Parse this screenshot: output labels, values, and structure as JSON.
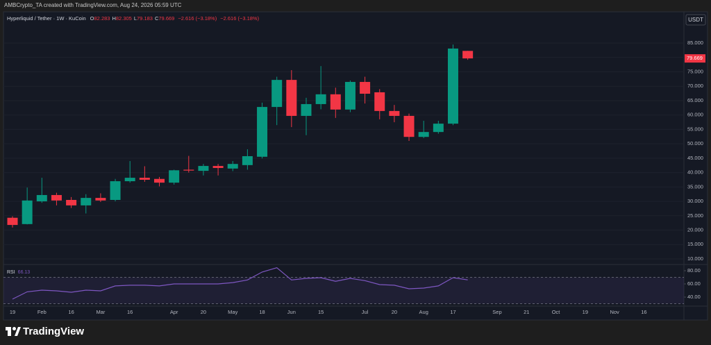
{
  "header": {
    "attribution": "AMBCrypto_TA created with TradingView.com, Aug 24, 2026 05:59 UTC",
    "badge": "USDT",
    "brand": "TradingView"
  },
  "chart_data": [
    {
      "type": "candlestick",
      "title": "Hyperliquid / Tether · 1W · KuCoin",
      "ohlc_letters": [
        "O",
        "H",
        "L",
        "C"
      ],
      "change_texts": [
        "−2.616 (−3.18%)",
        "−2.616 (−3.18%)"
      ],
      "up_color": "#089981",
      "down_color": "#f23645",
      "categories": [
        "19",
        null,
        "Feb",
        null,
        "16",
        null,
        "Mar",
        null,
        "16",
        null,
        null,
        "Apr",
        null,
        "20",
        null,
        "May",
        null,
        "18",
        null,
        "Jun",
        null,
        "15",
        null,
        null,
        "Jul",
        null,
        "20",
        null,
        "Aug",
        null,
        "17",
        null,
        null,
        "Sep",
        null,
        "21",
        null,
        "Oct",
        null,
        "19",
        null,
        "Nov",
        null,
        "16",
        null,
        null
      ],
      "open": [
        24.3,
        22.1,
        30.0,
        32.2,
        30.5,
        28.6,
        31.2,
        30.5,
        37.0,
        38.2,
        37.8,
        36.5,
        41.0,
        40.6,
        42.3,
        41.4,
        42.6,
        45.5,
        62.8,
        72.2,
        59.7,
        63.8,
        67.2,
        61.9,
        71.5,
        67.9,
        61.4,
        59.7,
        52.4,
        54.1,
        57.0,
        82.283,
        null,
        null,
        null,
        null,
        null,
        null,
        null,
        null,
        null,
        null,
        null,
        null,
        null,
        null
      ],
      "high": [
        24.8,
        34.8,
        38.2,
        33.0,
        31.5,
        32.5,
        32.8,
        37.8,
        44.0,
        42.2,
        38.5,
        41.0,
        45.8,
        43.0,
        43.0,
        44.0,
        48.1,
        64.3,
        73.3,
        75.6,
        66.0,
        77.0,
        69.5,
        72.0,
        73.3,
        69.0,
        63.5,
        60.5,
        58.0,
        58.0,
        84.5,
        82.305,
        null,
        null,
        null,
        null,
        null,
        null,
        null,
        null,
        null,
        null,
        null,
        null,
        null,
        null
      ],
      "low": [
        20.9,
        22.0,
        29.5,
        28.6,
        27.7,
        25.8,
        29.8,
        30.0,
        36.5,
        36.8,
        35.2,
        35.8,
        40.0,
        39.0,
        39.0,
        40.5,
        41.0,
        44.9,
        56.5,
        55.8,
        53.0,
        62.0,
        59.0,
        61.0,
        64.0,
        58.5,
        57.5,
        51.0,
        52.0,
        53.5,
        56.5,
        79.183,
        null,
        null,
        null,
        null,
        null,
        null,
        null,
        null,
        null,
        null,
        null,
        null,
        null,
        null
      ],
      "close": [
        21.8,
        30.3,
        32.2,
        30.3,
        28.6,
        31.2,
        30.3,
        37.0,
        38.2,
        37.5,
        36.5,
        40.8,
        40.7,
        42.3,
        41.6,
        43.0,
        45.7,
        62.8,
        72.2,
        59.7,
        63.8,
        67.2,
        61.9,
        71.5,
        67.4,
        61.4,
        59.7,
        52.4,
        54.1,
        57.0,
        83.1,
        79.669,
        null,
        null,
        null,
        null,
        null,
        null,
        null,
        null,
        null,
        null,
        null,
        null,
        null,
        null
      ],
      "ylim": [
        8.31,
        94.66
      ],
      "yticks": [
        {
          "value": 10,
          "label": "10.000"
        },
        {
          "value": 15,
          "label": "15.000"
        },
        {
          "value": 20,
          "label": "20.000"
        },
        {
          "value": 25,
          "label": "25.000"
        },
        {
          "value": 30,
          "label": "30.000"
        },
        {
          "value": 35,
          "label": "35.000"
        },
        {
          "value": 40,
          "label": "40.000"
        },
        {
          "value": 45,
          "label": "45.000"
        },
        {
          "value": 50,
          "label": "50.000"
        },
        {
          "value": 55,
          "label": "55.000"
        },
        {
          "value": 60,
          "label": "60.000"
        },
        {
          "value": 65,
          "label": "65.000"
        },
        {
          "value": 70,
          "label": "70.000"
        },
        {
          "value": 75,
          "label": "75.000"
        },
        {
          "value": 80,
          "label": "80.000"
        },
        {
          "value": 85,
          "label": "85.000"
        }
      ],
      "grid": true
    },
    {
      "type": "line",
      "title": "RSI",
      "color": "#7e57c2",
      "values": [
        37,
        48,
        50.5,
        49.5,
        47.4,
        50.5,
        49.5,
        57,
        58,
        58,
        57,
        60,
        60,
        60,
        60,
        62,
        66,
        78,
        84.5,
        66,
        68.4,
        69.5,
        64,
        68.4,
        65,
        59,
        58,
        52.6,
        53.7,
        57,
        69.5,
        66.13,
        null,
        null,
        null,
        null,
        null,
        null,
        null,
        null,
        null,
        null,
        null,
        null,
        null,
        null
      ],
      "band": [
        30,
        70
      ],
      "ylim": [
        27.37,
        87.37
      ],
      "yticks": [
        {
          "value": 40,
          "label": "40.00"
        },
        {
          "value": 60,
          "label": "60.00"
        },
        {
          "value": 80,
          "label": "80.00"
        }
      ]
    }
  ]
}
